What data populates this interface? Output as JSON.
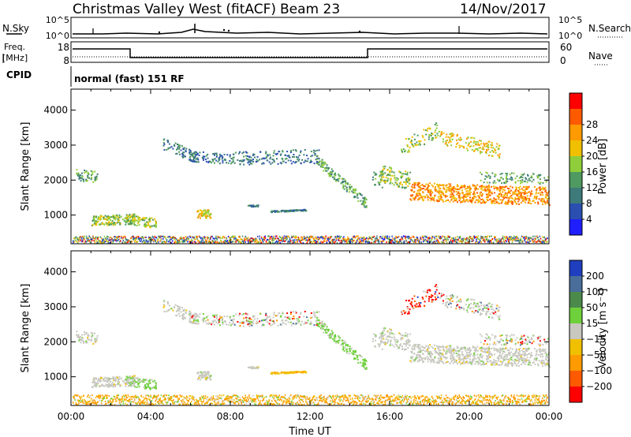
{
  "header": {
    "title": "Christmas Valley West (fitACF)",
    "beam": "Beam 23",
    "date": "14/Nov/2017"
  },
  "noise_panel": {
    "left_label": "N.Sky",
    "right_label": "N.Search",
    "tick_top": "10^5",
    "tick_bottom": "10^0",
    "right_tick_top": "10^5",
    "right_tick_bottom": "10^0"
  },
  "freq_panel": {
    "left_label_line1": "Freq.",
    "left_label_line2": "[MHz]",
    "left_ticks": [
      "18",
      "8"
    ],
    "right_label": "Nave",
    "right_ticks": [
      "60",
      "0"
    ]
  },
  "cpid": {
    "label": "CPID",
    "value": "normal (fast) 151 RF"
  },
  "colors": {
    "power": [
      "#1e1eff",
      "#2a4fb0",
      "#3e7a7a",
      "#4e9a60",
      "#8fce3a",
      "#f0c000",
      "#ff9a00",
      "#ff5a00",
      "#ff0000"
    ],
    "velocity_pos": [
      "#1f3fbf",
      "#4a6e9a",
      "#4c8a4c",
      "#6ed03a"
    ],
    "velocity_zero": "#c8c8c0",
    "velocity_neg": [
      "#f0c000",
      "#ff9a00",
      "#ff5a00",
      "#ff0000"
    ]
  },
  "chart_data": [
    {
      "type": "heatmap",
      "name": "power-panel",
      "ylabel": "Slant Range [km]",
      "ylim": [
        180,
        4600
      ],
      "yticks": [
        "1000",
        "2000",
        "3000",
        "4000"
      ],
      "xlim": [
        0,
        24
      ],
      "colorbar": {
        "label": "Power [dB]",
        "ticks": [
          "4",
          "8",
          "12",
          "16",
          "20",
          "24",
          "28"
        ],
        "range": [
          0,
          32
        ]
      }
    },
    {
      "type": "heatmap",
      "name": "velocity-panel",
      "ylabel": "Slant Range [km]",
      "ylim": [
        180,
        4600
      ],
      "yticks": [
        "1000",
        "2000",
        "3000",
        "4000"
      ],
      "xlim": [
        0,
        24
      ],
      "xticks": [
        "00:00",
        "04:00",
        "08:00",
        "12:00",
        "16:00",
        "20:00",
        "00:00"
      ],
      "xlabel": "Time UT",
      "colorbar": {
        "label": "Velocity [m s⁻¹]",
        "ticks": [
          "200",
          "100",
          "50",
          "15",
          "−15",
          "−50",
          "−100",
          "−200"
        ]
      }
    }
  ]
}
